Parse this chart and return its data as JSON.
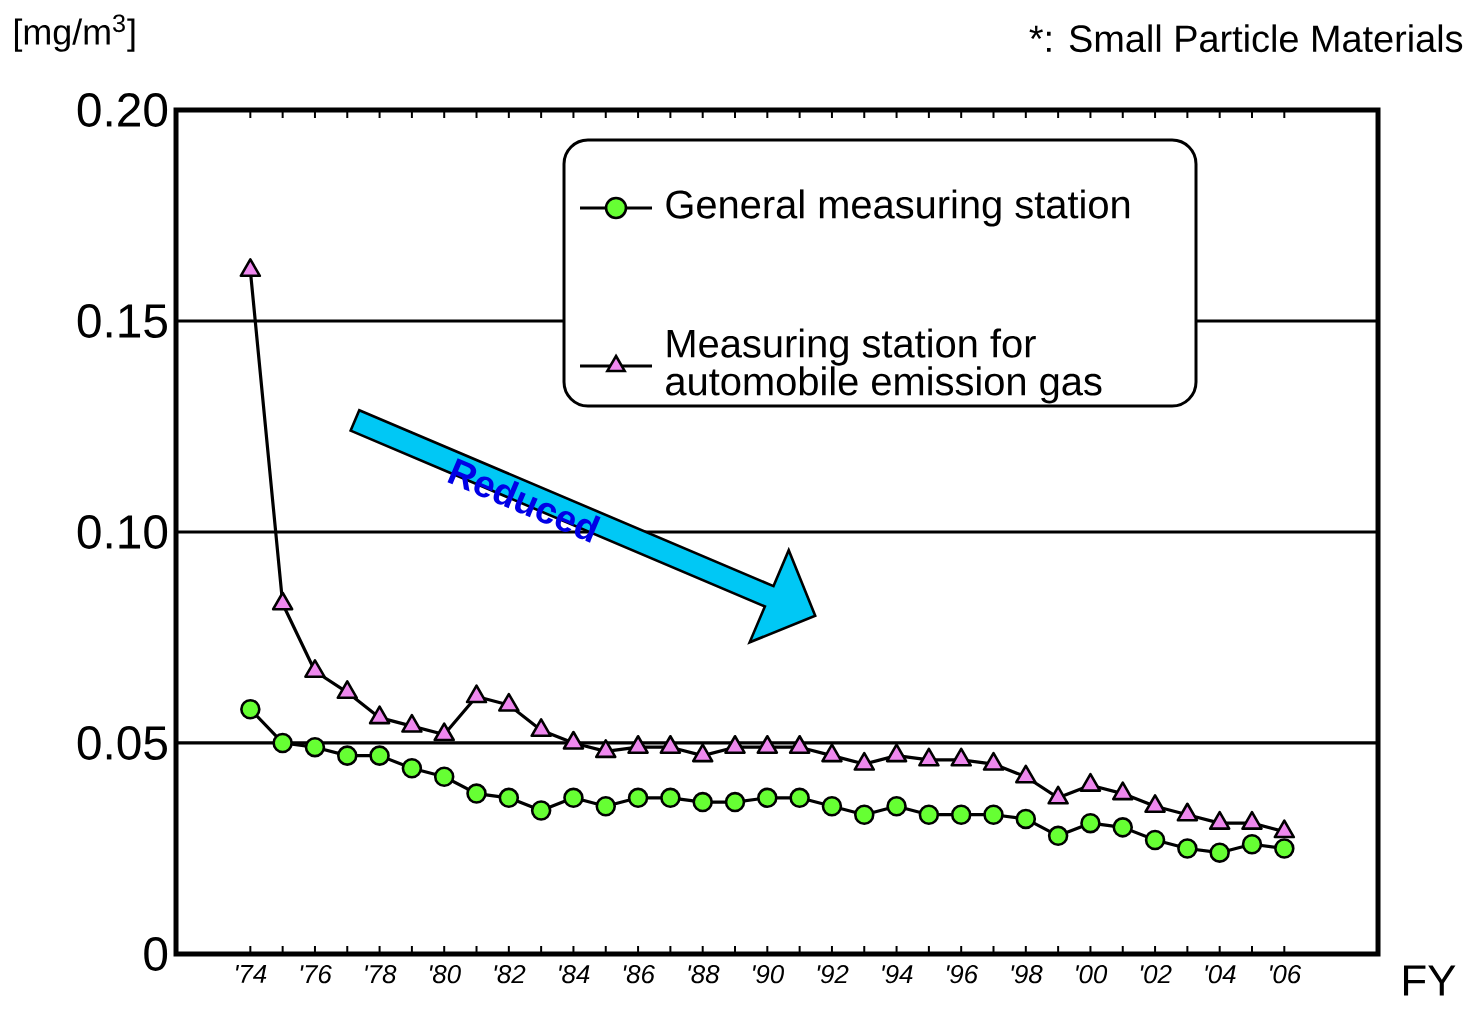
{
  "chart_data": {
    "type": "line",
    "ylabel": "[mg/m$^{3}$]",
    "xlabel": "FY",
    "annotations": [
      "*: Small Particle Materials",
      "Reduced"
    ],
    "categories": [
      "'74",
      null,
      "'76",
      null,
      "'78",
      null,
      "'80",
      null,
      "'82",
      null,
      "'84",
      null,
      "'86",
      null,
      "'88",
      null,
      "'90",
      null,
      "'92",
      null,
      "'94",
      null,
      "'96",
      null,
      "'98",
      null,
      "'00",
      null,
      "'02",
      null,
      "'04",
      null,
      "'06"
    ],
    "series": [
      {
        "name": "General measuring station",
        "color": "#66ff33",
        "marker": "circle",
        "values": [
          0.058,
          0.05,
          0.049,
          0.047,
          0.047,
          0.044,
          0.042,
          0.038,
          0.037,
          0.034,
          0.037,
          0.035,
          0.037,
          0.037,
          0.036,
          0.036,
          0.037,
          0.037,
          0.035,
          0.033,
          0.035,
          0.033,
          0.033,
          0.033,
          0.032,
          0.028,
          0.031,
          0.03,
          0.027,
          0.025,
          0.024,
          0.026,
          0.025
        ]
      },
      {
        "name": "Measuring station for automobile emission gas",
        "color": "#ee88ee",
        "marker": "triangle",
        "values": [
          0.162,
          0.083,
          0.067,
          0.062,
          0.056,
          0.054,
          0.052,
          0.061,
          0.059,
          0.053,
          0.05,
          0.048,
          0.049,
          0.049,
          0.047,
          0.049,
          0.049,
          0.049,
          0.047,
          0.045,
          0.047,
          0.046,
          0.046,
          0.045,
          0.042,
          0.037,
          0.04,
          0.038,
          0.035,
          0.033,
          0.031,
          0.031,
          0.029
        ]
      }
    ],
    "ylim": [
      0,
      0.2
    ],
    "yticks": [
      0,
      0.05,
      {
        "value": 0.1,
        "label": "0.10"
      },
      0.15,
      {
        "value": 0.2,
        "label": "0.20"
      }
    ],
    "grid": "y",
    "legend": "top right",
    "line_style": "solid"
  }
}
